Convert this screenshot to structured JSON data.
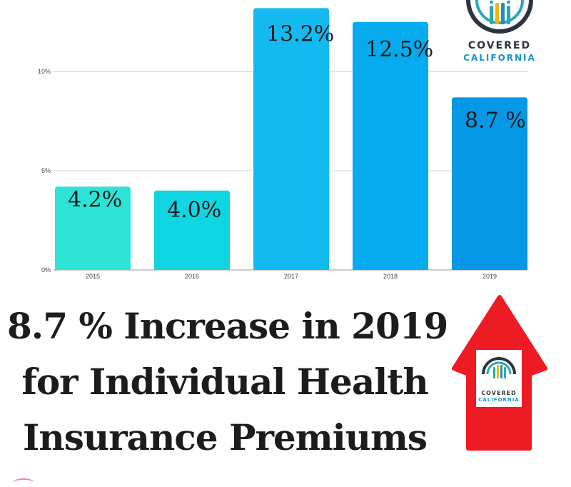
{
  "chart_data": {
    "type": "bar",
    "categories": [
      "2015",
      "2016",
      "2017",
      "2018",
      "2019"
    ],
    "values": [
      4.2,
      4.0,
      13.2,
      12.5,
      8.7
    ],
    "data_labels": [
      "4.2%",
      "4.0%",
      "13.2%",
      "12.5%",
      "8.7 %"
    ],
    "colors": [
      "#2de3d6",
      "#10d5e2",
      "#14b9ef",
      "#06aaee",
      "#0697e6"
    ],
    "y_ticks": [
      {
        "value": 0,
        "label": "0%"
      },
      {
        "value": 5,
        "label": "5%"
      },
      {
        "value": 10,
        "label": "10%"
      }
    ],
    "ylim": [
      0,
      13.5
    ],
    "grid": true,
    "title": "",
    "xlabel": "",
    "ylabel": ""
  },
  "logo": {
    "line1": "COVERED",
    "line2": "CALIFORNIA",
    "dark_color": "#2c3440",
    "teal_color": "#2aa8b5",
    "blue_color": "#1594c8",
    "yellow_color": "#f2b705"
  },
  "headline": {
    "line1": "8.7 %  Increase in 2019",
    "line2": "for Individual Health",
    "line3": "Insurance Premiums"
  },
  "arrow": {
    "color": "#ed1c24"
  }
}
